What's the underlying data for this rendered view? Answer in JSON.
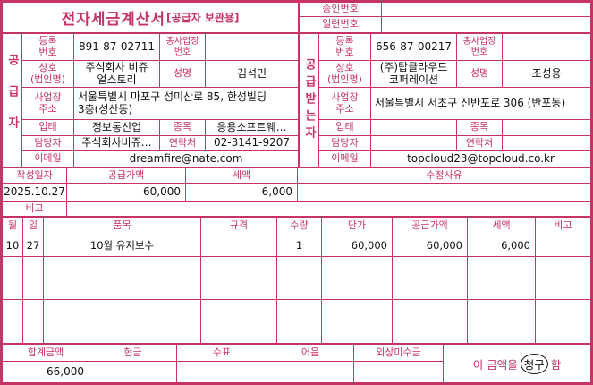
{
  "colors": {
    "accent": "#c73365",
    "ink": "#111111"
  },
  "title": {
    "main": "전자세금계산서",
    "sub": "[공급자 보관용]"
  },
  "approval": {
    "approval_label": "승인번호",
    "approval_value": "",
    "serial_label": "일련번호",
    "serial_value": ""
  },
  "supplier": {
    "side_label": "공급자",
    "reg_label": "등록\n번호",
    "reg_value": "891-87-02711",
    "subbiz_label": "종사업장\n번호",
    "subbiz_value": "",
    "name_label": "상호\n(법인명)",
    "name_value": "주식회사 비쥬\n얼스토리",
    "ceo_label": "성명",
    "ceo_value": "김석민",
    "addr_label": "사업장\n주소",
    "addr_value": "서울특별시 마포구 성미산로 85, 한성빌딩\n3층(성산동)",
    "biztype_label": "업태",
    "biztype_value": "정보통신업",
    "bizitem_label": "종목",
    "bizitem_value": "응용소프트웨…",
    "contact_label": "담당자",
    "contact_value": "주식회사비쥬…",
    "phone_label": "연락처",
    "phone_value": "02-3141-9207",
    "email_label": "이메일",
    "email_value": "dreamfire@nate.com"
  },
  "recipient": {
    "side_label": "공급받는자",
    "reg_label": "등록\n번호",
    "reg_value": "656-87-00217",
    "subbiz_label": "종사업장\n번호",
    "subbiz_value": "",
    "name_label": "상호\n(법인명)",
    "name_value": "(주)탑클라우드\n코퍼레이션",
    "ceo_label": "성명",
    "ceo_value": "조성용",
    "addr_label": "사업장\n주소",
    "addr_value": "서울특별시 서초구 신반포로 306 (반포동)",
    "biztype_label": "업태",
    "biztype_value": "",
    "bizitem_label": "종목",
    "bizitem_value": "",
    "contact_label": "담당자",
    "contact_value": "",
    "phone_label": "연락처",
    "phone_value": "",
    "email_label": "이메일",
    "email_value": "topcloud23@topcloud.co.kr"
  },
  "summary": {
    "date_label": "작성일자",
    "date_value": "2025.10.27",
    "supply_label": "공급가액",
    "supply_value": "60,000",
    "tax_label": "세액",
    "tax_value": "6,000",
    "reason_label": "수정사유",
    "reason_value": "",
    "note_label": "비고",
    "note_value": ""
  },
  "items": {
    "headers": [
      "월",
      "일",
      "품목",
      "규격",
      "수량",
      "단가",
      "공급가액",
      "세액",
      "비고"
    ],
    "rows": [
      [
        "10",
        "27",
        "10월 유지보수",
        "",
        "1",
        "60,000",
        "60,000",
        "6,000",
        ""
      ],
      [
        "",
        "",
        "",
        "",
        "",
        "",
        "",
        "",
        ""
      ],
      [
        "",
        "",
        "",
        "",
        "",
        "",
        "",
        "",
        ""
      ],
      [
        "",
        "",
        "",
        "",
        "",
        "",
        "",
        "",
        ""
      ],
      [
        "",
        "",
        "",
        "",
        "",
        "",
        "",
        "",
        ""
      ]
    ]
  },
  "footer": {
    "total_label": "합계금액",
    "total_value": "66,000",
    "cash_label": "현금",
    "cash_value": "",
    "check_label": "수표",
    "check_value": "",
    "note_label": "어음",
    "note_value": "",
    "credit_label": "외상미수금",
    "credit_value": "",
    "statement_prefix": "이 금액을",
    "statement_circled": "청구",
    "statement_suffix": "함"
  }
}
